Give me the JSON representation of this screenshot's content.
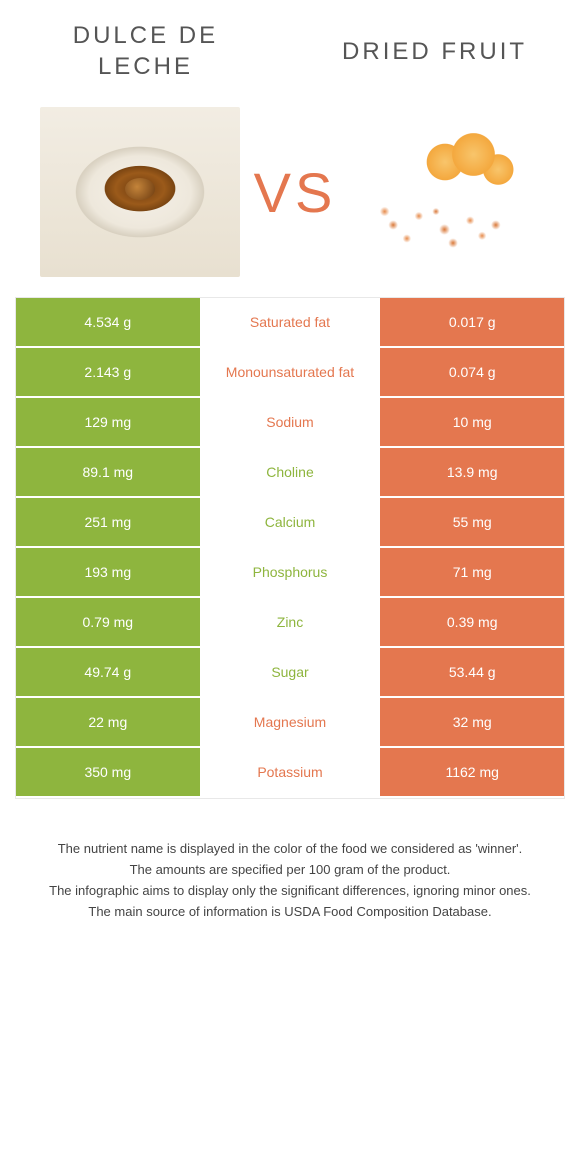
{
  "left_food": "Dulce de leche",
  "right_food": "Dried fruit",
  "vs_label": "VS",
  "colors": {
    "left": "#8eb53e",
    "right": "#e4774f",
    "mid_text_left": "#8eb53e",
    "mid_text_right": "#e4774f"
  },
  "rows": [
    {
      "left": "4.534 g",
      "name": "Saturated fat",
      "right": "0.017 g",
      "winner": "right"
    },
    {
      "left": "2.143 g",
      "name": "Monounsaturated fat",
      "right": "0.074 g",
      "winner": "right"
    },
    {
      "left": "129 mg",
      "name": "Sodium",
      "right": "10 mg",
      "winner": "right"
    },
    {
      "left": "89.1 mg",
      "name": "Choline",
      "right": "13.9 mg",
      "winner": "left"
    },
    {
      "left": "251 mg",
      "name": "Calcium",
      "right": "55 mg",
      "winner": "left"
    },
    {
      "left": "193 mg",
      "name": "Phosphorus",
      "right": "71 mg",
      "winner": "left"
    },
    {
      "left": "0.79 mg",
      "name": "Zinc",
      "right": "0.39 mg",
      "winner": "left"
    },
    {
      "left": "49.74 g",
      "name": "Sugar",
      "right": "53.44 g",
      "winner": "left"
    },
    {
      "left": "22 mg",
      "name": "Magnesium",
      "right": "32 mg",
      "winner": "right"
    },
    {
      "left": "350 mg",
      "name": "Potassium",
      "right": "1162 mg",
      "winner": "right"
    }
  ],
  "footer_lines": [
    "The nutrient name is displayed in the color of the food we considered as 'winner'.",
    "The amounts are specified per 100 gram of the product.",
    "The infographic aims to display only the significant differences, ignoring minor ones.",
    "The main source of information is USDA Food Composition Database."
  ]
}
